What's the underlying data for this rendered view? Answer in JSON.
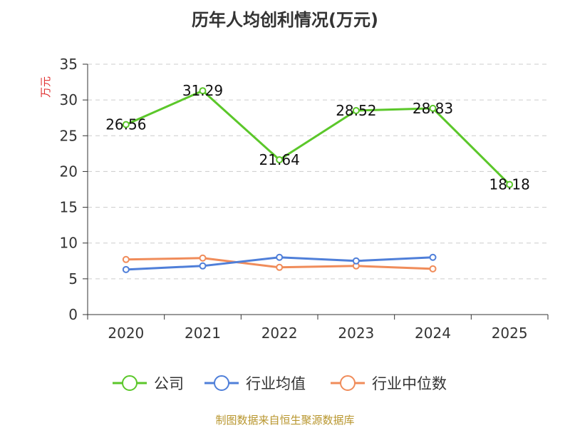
{
  "chart_data": {
    "type": "line",
    "title": "历年人均创利情况(万元)",
    "ylabel": "万元",
    "xlabel": "",
    "categories": [
      "2020",
      "2021",
      "2022",
      "2023",
      "2024",
      "2025"
    ],
    "ylim": [
      0,
      35
    ],
    "yticks": [
      0,
      5,
      10,
      15,
      20,
      25,
      30,
      35
    ],
    "grid": true,
    "legend_position": "bottom",
    "series": [
      {
        "name": "公司",
        "color": "#5bc72a",
        "values": [
          26.56,
          31.29,
          21.64,
          28.52,
          28.83,
          18.18
        ],
        "labels": true
      },
      {
        "name": "行业均值",
        "color": "#4f7fd9",
        "values": [
          6.3,
          6.8,
          8.0,
          7.5,
          8.0,
          null
        ],
        "labels": false
      },
      {
        "name": "行业中位数",
        "color": "#f08c5a",
        "values": [
          7.7,
          7.9,
          6.6,
          6.8,
          6.4,
          null
        ],
        "labels": false
      }
    ]
  },
  "source_note": "制图数据来自恒生聚源数据库",
  "colors": {
    "ylabel": "#e03030",
    "axis": "#333333",
    "grid": "#cccccc"
  }
}
